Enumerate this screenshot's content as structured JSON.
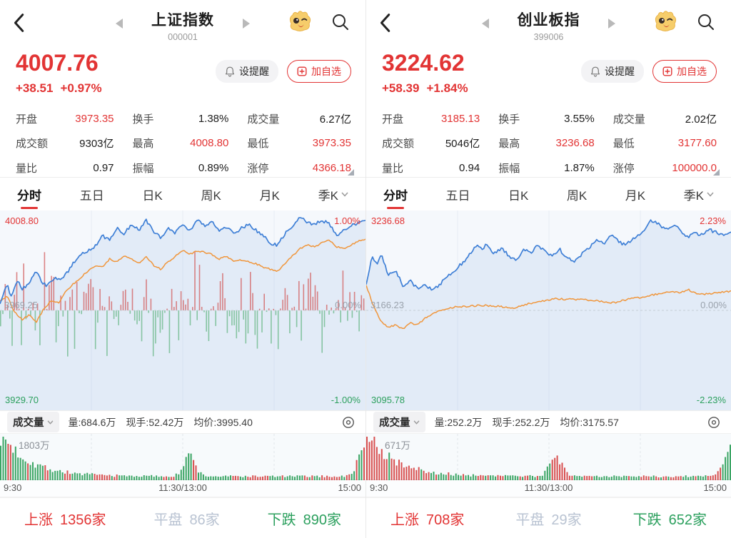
{
  "tabs": [
    {
      "label": "分时"
    },
    {
      "label": "五日"
    },
    {
      "label": "日K"
    },
    {
      "label": "周K"
    },
    {
      "label": "月K"
    },
    {
      "label": "季K"
    }
  ],
  "times": {
    "open": "9:30",
    "noon": "11:30/13:00",
    "close": "15:00"
  },
  "panels": [
    {
      "header": {
        "title": "上证指数",
        "code": "000001"
      },
      "price": {
        "value": "4007.76",
        "change": "+38.51",
        "change_pct": "+0.97%"
      },
      "actions": {
        "alert": "设提醒",
        "watch": "加自选"
      },
      "stats": [
        {
          "label": "开盘",
          "value": "3973.35"
        },
        {
          "label": "换手",
          "value": "1.38%"
        },
        {
          "label": "成交量",
          "value": "6.27亿"
        },
        {
          "label": "成交额",
          "value": "9303亿"
        },
        {
          "label": "最高",
          "value": "4008.80"
        },
        {
          "label": "最低",
          "value": "3973.35"
        },
        {
          "label": "量比",
          "value": "0.97"
        },
        {
          "label": "振幅",
          "value": "0.89%"
        },
        {
          "label": "涨停",
          "value": "4366.18"
        }
      ],
      "chart_labels": {
        "top_left": "4008.80",
        "top_right": "1.00%",
        "mid_left": "3969.25",
        "mid_right": "0.00%",
        "bottom_left": "3929.70",
        "bottom_right": "-1.00%"
      },
      "volume_row": {
        "name": "成交量",
        "vol": "量:684.6万",
        "hand": "现手:52.42万",
        "avg": "均价:3995.40"
      },
      "volume_chart": {
        "max_label": "1803万"
      },
      "breadth": [
        {
          "label": "上涨",
          "value": "1356家"
        },
        {
          "label": "平盘",
          "value": "86家"
        },
        {
          "label": "下跌",
          "value": "890家"
        }
      ]
    },
    {
      "header": {
        "title": "创业板指",
        "code": "399006"
      },
      "price": {
        "value": "3224.62",
        "change": "+58.39",
        "change_pct": "+1.84%"
      },
      "actions": {
        "alert": "设提醒",
        "watch": "加自选"
      },
      "stats": [
        {
          "label": "开盘",
          "value": "3185.13"
        },
        {
          "label": "换手",
          "value": "3.55%"
        },
        {
          "label": "成交量",
          "value": "2.02亿"
        },
        {
          "label": "成交额",
          "value": "5046亿"
        },
        {
          "label": "最高",
          "value": "3236.68"
        },
        {
          "label": "最低",
          "value": "3177.60"
        },
        {
          "label": "量比",
          "value": "0.94"
        },
        {
          "label": "振幅",
          "value": "1.87%"
        },
        {
          "label": "涨停",
          "value": "100000.0"
        }
      ],
      "chart_labels": {
        "top_left": "3236.68",
        "top_right": "2.23%",
        "mid_left": "3166.23",
        "mid_right": "0.00%",
        "bottom_left": "3095.78",
        "bottom_right": "-2.23%"
      },
      "volume_row": {
        "name": "成交量",
        "vol": "量:252.2万",
        "hand": "现手:252.2万",
        "avg": "均价:3175.57"
      },
      "volume_chart": {
        "max_label": "671万"
      },
      "breadth": [
        {
          "label": "上涨",
          "value": "708家"
        },
        {
          "label": "平盘",
          "value": "29家"
        },
        {
          "label": "下跌",
          "value": "652家"
        }
      ]
    }
  ],
  "colors": {
    "up_red": "#e23434",
    "down_green": "#2ca05e",
    "flat_gray": "#b9c3d2",
    "price_line_blue": "#3e7fd6",
    "avg_line_orange": "#f0963c",
    "vol_bar_red": "#d84f4f",
    "vol_bar_green": "#3aa564",
    "mid_bar_red": "rgba(210,92,92,0.75)",
    "mid_bar_green": "rgba(96,180,126,0.7)"
  },
  "chart_data": [
    {
      "type": "line",
      "title": "上证指数 分时",
      "ylim": [
        -1.0,
        1.0
      ],
      "prev_close": 3969.25,
      "x_axis": [
        "9:30",
        "11:30/13:00",
        "15:00"
      ],
      "price_line": [
        [
          0,
          0.08
        ],
        [
          0.02,
          0.28
        ],
        [
          0.03,
          0.15
        ],
        [
          0.05,
          0.34
        ],
        [
          0.06,
          0.22
        ],
        [
          0.08,
          0.3
        ],
        [
          0.1,
          0.42
        ],
        [
          0.115,
          0.3
        ],
        [
          0.13,
          0.26
        ],
        [
          0.15,
          0.35
        ],
        [
          0.17,
          0.33
        ],
        [
          0.2,
          0.5
        ],
        [
          0.23,
          0.62
        ],
        [
          0.26,
          0.68
        ],
        [
          0.28,
          0.8
        ],
        [
          0.3,
          0.75
        ],
        [
          0.32,
          0.88
        ],
        [
          0.34,
          0.82
        ],
        [
          0.36,
          0.92
        ],
        [
          0.38,
          0.86
        ],
        [
          0.4,
          0.96
        ],
        [
          0.42,
          0.85
        ],
        [
          0.44,
          0.78
        ],
        [
          0.46,
          0.88
        ],
        [
          0.48,
          0.83
        ],
        [
          0.5,
          0.92
        ],
        [
          0.52,
          0.85
        ],
        [
          0.54,
          0.96
        ],
        [
          0.56,
          0.9
        ],
        [
          0.58,
          0.95
        ],
        [
          0.6,
          0.85
        ],
        [
          0.62,
          0.9
        ],
        [
          0.64,
          0.82
        ],
        [
          0.66,
          0.88
        ],
        [
          0.68,
          0.92
        ],
        [
          0.7,
          0.86
        ],
        [
          0.72,
          0.8
        ],
        [
          0.74,
          0.72
        ],
        [
          0.76,
          0.7
        ],
        [
          0.78,
          0.82
        ],
        [
          0.8,
          0.9
        ],
        [
          0.82,
          1.0
        ],
        [
          0.84,
          0.95
        ],
        [
          0.86,
          0.92
        ],
        [
          0.88,
          0.96
        ],
        [
          0.9,
          0.93
        ],
        [
          0.92,
          0.8
        ],
        [
          0.94,
          0.87
        ],
        [
          0.96,
          0.9
        ],
        [
          0.98,
          0.94
        ],
        [
          1,
          0.97
        ]
      ],
      "avg_line": [
        [
          0,
          0.1
        ],
        [
          0.02,
          0.15
        ],
        [
          0.04,
          -0.02
        ],
        [
          0.06,
          -0.1
        ],
        [
          0.08,
          -0.05
        ],
        [
          0.1,
          -0.12
        ],
        [
          0.12,
          0.02
        ],
        [
          0.14,
          0.1
        ],
        [
          0.16,
          0.08
        ],
        [
          0.18,
          0.2
        ],
        [
          0.2,
          0.28
        ],
        [
          0.22,
          0.35
        ],
        [
          0.24,
          0.42
        ],
        [
          0.26,
          0.48
        ],
        [
          0.28,
          0.46
        ],
        [
          0.3,
          0.55
        ],
        [
          0.32,
          0.52
        ],
        [
          0.34,
          0.58
        ],
        [
          0.36,
          0.55
        ],
        [
          0.38,
          0.5
        ],
        [
          0.4,
          0.58
        ],
        [
          0.42,
          0.48
        ],
        [
          0.44,
          0.44
        ],
        [
          0.46,
          0.52
        ],
        [
          0.48,
          0.58
        ],
        [
          0.5,
          0.64
        ],
        [
          0.52,
          0.6
        ],
        [
          0.54,
          0.64
        ],
        [
          0.56,
          0.62
        ],
        [
          0.58,
          0.6
        ],
        [
          0.6,
          0.55
        ],
        [
          0.62,
          0.58
        ],
        [
          0.64,
          0.52
        ],
        [
          0.66,
          0.54
        ],
        [
          0.68,
          0.52
        ],
        [
          0.7,
          0.5
        ],
        [
          0.72,
          0.46
        ],
        [
          0.74,
          0.44
        ],
        [
          0.76,
          0.42
        ],
        [
          0.78,
          0.5
        ],
        [
          0.8,
          0.58
        ],
        [
          0.82,
          0.66
        ],
        [
          0.84,
          0.7
        ],
        [
          0.86,
          0.68
        ],
        [
          0.88,
          0.72
        ],
        [
          0.9,
          0.76
        ],
        [
          0.92,
          0.68
        ],
        [
          0.94,
          0.66
        ],
        [
          0.96,
          0.7
        ],
        [
          0.98,
          0.74
        ],
        [
          1,
          0.76
        ]
      ],
      "line_noise": 0.035,
      "mid_bars": {
        "seed": 42,
        "count": 158,
        "up_max": 78,
        "down_max": 88,
        "early_boost": 1.15
      },
      "volume": {
        "seed": 7,
        "count": 148,
        "decay": 13,
        "open": 1.0,
        "lunch_spike": 0.45,
        "end_spike": 0.6,
        "base": 0.09
      }
    },
    {
      "type": "line",
      "title": "创业板指 分时",
      "ylim": [
        -2.23,
        2.23
      ],
      "prev_close": 3166.23,
      "x_axis": [
        "9:30",
        "11:30/13:00",
        "15:00"
      ],
      "price_line": [
        [
          0,
          0.6
        ],
        [
          0.015,
          1.3
        ],
        [
          0.03,
          1.1
        ],
        [
          0.04,
          1.35
        ],
        [
          0.06,
          0.85
        ],
        [
          0.08,
          0.95
        ],
        [
          0.1,
          0.6
        ],
        [
          0.12,
          0.7
        ],
        [
          0.14,
          0.52
        ],
        [
          0.16,
          0.62
        ],
        [
          0.18,
          0.48
        ],
        [
          0.2,
          0.6
        ],
        [
          0.22,
          0.8
        ],
        [
          0.24,
          0.95
        ],
        [
          0.26,
          1.1
        ],
        [
          0.28,
          1.3
        ],
        [
          0.3,
          1.55
        ],
        [
          0.32,
          1.45
        ],
        [
          0.33,
          1.6
        ],
        [
          0.35,
          1.35
        ],
        [
          0.37,
          1.5
        ],
        [
          0.39,
          1.3
        ],
        [
          0.41,
          1.2
        ],
        [
          0.43,
          1.45
        ],
        [
          0.45,
          1.38
        ],
        [
          0.47,
          1.55
        ],
        [
          0.49,
          1.4
        ],
        [
          0.51,
          1.3
        ],
        [
          0.53,
          1.45
        ],
        [
          0.55,
          1.25
        ],
        [
          0.57,
          1.18
        ],
        [
          0.59,
          1.35
        ],
        [
          0.61,
          1.5
        ],
        [
          0.63,
          1.7
        ],
        [
          0.65,
          1.6
        ],
        [
          0.67,
          1.78
        ],
        [
          0.69,
          1.65
        ],
        [
          0.71,
          1.55
        ],
        [
          0.73,
          1.7
        ],
        [
          0.75,
          1.85
        ],
        [
          0.77,
          2.0
        ],
        [
          0.78,
          2.15
        ],
        [
          0.8,
          2.05
        ],
        [
          0.82,
          1.95
        ],
        [
          0.84,
          2.05
        ],
        [
          0.86,
          1.9
        ],
        [
          0.88,
          1.75
        ],
        [
          0.9,
          1.85
        ],
        [
          0.92,
          1.8
        ],
        [
          0.94,
          1.92
        ],
        [
          0.96,
          1.85
        ],
        [
          0.98,
          1.8
        ],
        [
          1,
          1.84
        ]
      ],
      "avg_line": [
        [
          0,
          0.6
        ],
        [
          0.02,
          0.1
        ],
        [
          0.04,
          -0.25
        ],
        [
          0.06,
          -0.4
        ],
        [
          0.08,
          -0.35
        ],
        [
          0.1,
          -0.45
        ],
        [
          0.12,
          -0.3
        ],
        [
          0.14,
          -0.35
        ],
        [
          0.16,
          -0.2
        ],
        [
          0.18,
          -0.1
        ],
        [
          0.2,
          0.0
        ],
        [
          0.24,
          0.08
        ],
        [
          0.28,
          0.1
        ],
        [
          0.32,
          0.12
        ],
        [
          0.36,
          0.1
        ],
        [
          0.4,
          0.05
        ],
        [
          0.44,
          0.15
        ],
        [
          0.48,
          0.22
        ],
        [
          0.52,
          0.28
        ],
        [
          0.56,
          0.26
        ],
        [
          0.6,
          0.25
        ],
        [
          0.64,
          0.22
        ],
        [
          0.68,
          0.18
        ],
        [
          0.72,
          0.28
        ],
        [
          0.76,
          0.32
        ],
        [
          0.8,
          0.4
        ],
        [
          0.84,
          0.45
        ],
        [
          0.86,
          0.42
        ],
        [
          0.88,
          0.5
        ],
        [
          0.9,
          0.42
        ],
        [
          0.92,
          0.38
        ],
        [
          0.94,
          0.4
        ],
        [
          0.96,
          0.42
        ],
        [
          0.98,
          0.44
        ],
        [
          1,
          0.46
        ]
      ],
      "line_noise": 0.08,
      "volume": {
        "seed": 21,
        "count": 148,
        "decay": 13,
        "open": 1.0,
        "lunch_spike": 0.5,
        "end_spike": 0.75,
        "base": 0.09
      }
    }
  ]
}
